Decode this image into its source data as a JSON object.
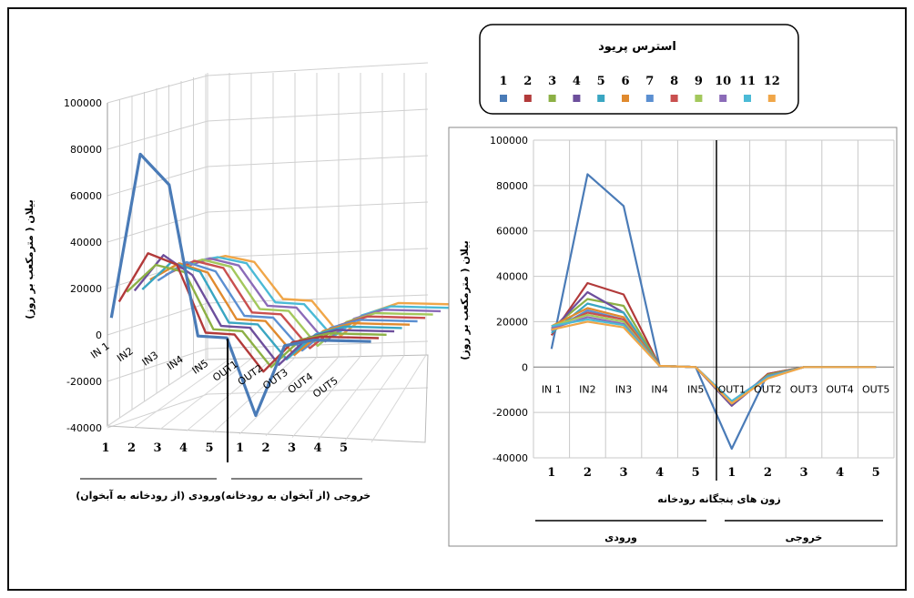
{
  "legend": {
    "title": "استرس پریود",
    "periods": [
      "1",
      "2",
      "3",
      "4",
      "5",
      "6",
      "7",
      "8",
      "9",
      "10",
      "11",
      "12"
    ],
    "colors": [
      "#4a7bb7",
      "#b23a3a",
      "#8cb045",
      "#6d4f9c",
      "#3aa6c2",
      "#e08a2e",
      "#5b8fd1",
      "#c9504f",
      "#a3c85c",
      "#8b6bb8",
      "#4bbad6",
      "#f0a648"
    ]
  },
  "chart_data": [
    {
      "type": "line",
      "subtype": "3d-line",
      "ylabel": "بیلان ( مترمکعب بر روز)",
      "yticks": [
        "100000",
        "80000",
        "60000",
        "40000",
        "20000",
        "0",
        "-20000",
        "-40000"
      ],
      "ylim": [
        -40000,
        100000
      ],
      "categories": [
        "IN 1",
        "IN2",
        "IN3",
        "IN4",
        "IN5",
        "OUT1",
        "OUT2",
        "OUT3",
        "OUT4",
        "OUT5"
      ],
      "bottom_numbers": [
        "1",
        "2",
        "3",
        "4",
        "5",
        "1",
        "2",
        "3",
        "4",
        "5"
      ],
      "group_labels": [
        "ورودی (از رودخانه به آبخوان)",
        "خروجی (از آبخوان به رودخانه)"
      ]
    },
    {
      "type": "line",
      "ylabel": "بیلان ( مترمکعب بر روز)",
      "xlabel": "زون های پنجگانه رودخانه",
      "yticks": [
        "100000",
        "80000",
        "60000",
        "40000",
        "20000",
        "0",
        "-20000",
        "-40000"
      ],
      "ylim": [
        -40000,
        100000
      ],
      "categories": [
        "IN 1",
        "IN2",
        "IN3",
        "IN4",
        "IN5",
        "OUT1",
        "OUT2",
        "OUT3",
        "OUT4",
        "OUT5"
      ],
      "bottom_numbers": [
        "1",
        "2",
        "3",
        "4",
        "5",
        "1",
        "2",
        "3",
        "4",
        "5"
      ],
      "group_labels": [
        "ورودی",
        "خروجی"
      ],
      "series": [
        {
          "values": [
            8000,
            85000,
            71000,
            500,
            0,
            -36000,
            -3000,
            0,
            0,
            0
          ]
        },
        {
          "values": [
            14000,
            37000,
            32000,
            500,
            0,
            -17000,
            -3000,
            0,
            0,
            0
          ]
        },
        {
          "values": [
            17000,
            30000,
            27000,
            500,
            0,
            -16500,
            -3500,
            0,
            0,
            0
          ]
        },
        {
          "values": [
            16000,
            33000,
            24000,
            500,
            0,
            -17000,
            -4000,
            0,
            0,
            0
          ]
        },
        {
          "values": [
            15000,
            28000,
            24000,
            500,
            0,
            -16000,
            -4000,
            0,
            0,
            0
          ]
        },
        {
          "values": [
            18000,
            26000,
            22000,
            500,
            0,
            -15500,
            -4000,
            0,
            0,
            0
          ]
        },
        {
          "values": [
            16000,
            25000,
            21000,
            500,
            0,
            -15000,
            -4000,
            0,
            0,
            0
          ]
        },
        {
          "values": [
            17000,
            24000,
            21000,
            500,
            0,
            -15500,
            -4500,
            0,
            0,
            0
          ]
        },
        {
          "values": [
            18000,
            23000,
            20000,
            500,
            0,
            -16000,
            -4500,
            0,
            0,
            0
          ]
        },
        {
          "values": [
            17000,
            22000,
            19000,
            500,
            0,
            -15500,
            -4500,
            0,
            0,
            0
          ]
        },
        {
          "values": [
            18000,
            21000,
            18500,
            500,
            0,
            -15000,
            -4500,
            0,
            0,
            0
          ]
        },
        {
          "values": [
            16500,
            20000,
            17500,
            500,
            0,
            -16000,
            -5000,
            0,
            0,
            0
          ]
        }
      ]
    }
  ]
}
